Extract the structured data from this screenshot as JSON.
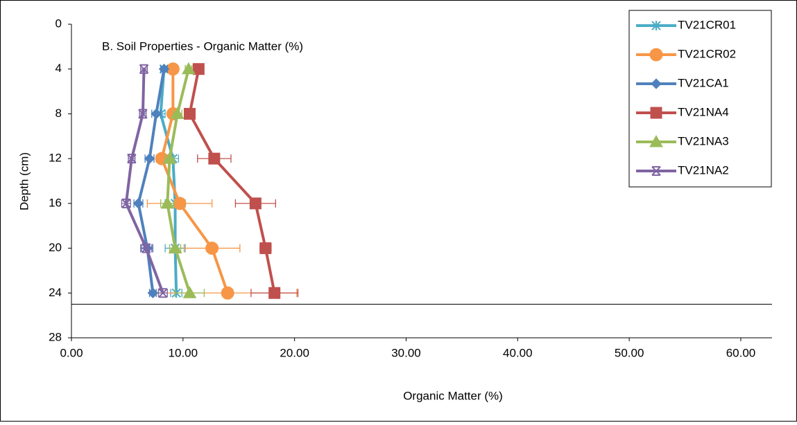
{
  "chart_data": {
    "type": "line",
    "title": "B. Soil Properties - Organic Matter (%)",
    "x_label": "Organic Matter (%)",
    "y_label": "Depth (cm)",
    "y": [
      4,
      8,
      12,
      16,
      20,
      24
    ],
    "y_reversed": true,
    "xlim": [
      0,
      62.8
    ],
    "ylim": [
      0,
      28
    ],
    "xticks": [
      {
        "value": 0,
        "label": "0.00"
      },
      {
        "value": 10,
        "label": "10.00"
      },
      {
        "value": 20,
        "label": "20.00"
      },
      {
        "value": 30,
        "label": "30.00"
      },
      {
        "value": 40,
        "label": "40.00"
      },
      {
        "value": 50,
        "label": "50.00"
      },
      {
        "value": 60,
        "label": "60.00"
      }
    ],
    "yticks": [
      0,
      4,
      8,
      12,
      16,
      20,
      24,
      28
    ],
    "reference_line_y": 25,
    "grid": false,
    "legend": "top-right",
    "series": [
      {
        "name": "TV21CR01",
        "color": "#4bacc6",
        "marker": "asterisk",
        "values": [
          8.3,
          8.0,
          9.1,
          9.3,
          9.3,
          9.4
        ],
        "errors": [
          0.3,
          0.4,
          0.5,
          0.9,
          0.9,
          0.5
        ]
      },
      {
        "name": "TV21CR02",
        "color": "#f79646",
        "marker": "circle",
        "values": [
          9.1,
          9.1,
          8.1,
          9.7,
          12.6,
          14.0
        ],
        "errors": [
          0.3,
          0.3,
          0.5,
          2.9,
          2.5,
          6.2
        ]
      },
      {
        "name": "TV21CA1",
        "color": "#4f81bd",
        "marker": "diamond",
        "values": [
          8.3,
          7.6,
          7.0,
          6.0,
          6.8,
          7.3
        ],
        "errors": [
          0.3,
          0.4,
          0.4,
          0.4,
          0.5,
          0.3
        ]
      },
      {
        "name": "TV21NA4",
        "color": "#c0504d",
        "marker": "square",
        "values": [
          11.4,
          10.6,
          12.8,
          16.5,
          17.4,
          18.2
        ],
        "errors": [
          0.4,
          0.4,
          1.5,
          1.8,
          0.5,
          2.1
        ]
      },
      {
        "name": "TV21NA3",
        "color": "#9bbb59",
        "marker": "triangle",
        "values": [
          10.5,
          9.5,
          8.8,
          8.6,
          9.3,
          10.6
        ],
        "errors": [
          0.3,
          0.4,
          0.4,
          0.6,
          0.5,
          1.3
        ]
      },
      {
        "name": "TV21NA2",
        "color": "#8064a2",
        "marker": "x",
        "values": [
          6.5,
          6.4,
          5.4,
          4.9,
          6.7,
          8.2
        ],
        "errors": [
          0.3,
          0.3,
          0.3,
          0.4,
          0.5,
          0.4
        ]
      }
    ]
  }
}
